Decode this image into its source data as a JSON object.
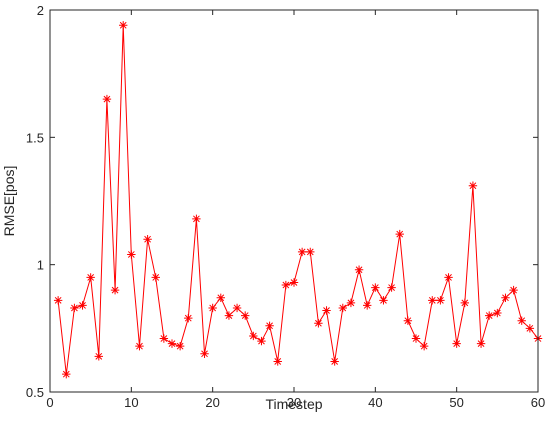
{
  "chart_data": {
    "type": "line",
    "title": "",
    "xlabel": "Timestep",
    "ylabel": "RMSE[pos]",
    "xlim": [
      0,
      60
    ],
    "ylim": [
      0.5,
      2
    ],
    "xticks": [
      0,
      10,
      20,
      30,
      40,
      50,
      60
    ],
    "yticks": [
      0.5,
      1,
      1.5,
      2
    ],
    "xtick_labels": [
      "0",
      "10",
      "20",
      "30",
      "40",
      "50",
      "60"
    ],
    "ytick_labels": [
      "0.5",
      "1",
      "1.5",
      "2"
    ],
    "grid": false,
    "legend": "none",
    "series": [
      {
        "color": "#ff0000",
        "marker": "asterisk",
        "x": [
          1,
          2,
          3,
          4,
          5,
          6,
          7,
          8,
          9,
          10,
          11,
          12,
          13,
          14,
          15,
          16,
          17,
          18,
          19,
          20,
          21,
          22,
          23,
          24,
          25,
          26,
          27,
          28,
          29,
          30,
          31,
          32,
          33,
          34,
          35,
          36,
          37,
          38,
          39,
          40,
          41,
          42,
          43,
          44,
          45,
          46,
          47,
          48,
          49,
          50,
          51,
          52,
          53,
          54,
          55,
          56,
          57,
          58,
          59,
          60
        ],
        "values": [
          0.86,
          0.57,
          0.83,
          0.84,
          0.95,
          0.64,
          1.65,
          0.9,
          1.94,
          1.04,
          0.68,
          1.1,
          0.95,
          0.71,
          0.69,
          0.68,
          0.79,
          1.18,
          0.65,
          0.83,
          0.87,
          0.8,
          0.83,
          0.8,
          0.72,
          0.7,
          0.76,
          0.62,
          0.92,
          0.93,
          1.05,
          1.05,
          0.77,
          0.82,
          0.62,
          0.83,
          0.85,
          0.98,
          0.84,
          0.91,
          0.86,
          0.91,
          1.12,
          0.78,
          0.71,
          0.68,
          0.86,
          0.86,
          0.95,
          0.69,
          0.85,
          1.31,
          0.69,
          0.8,
          0.81,
          0.87,
          0.9,
          0.78,
          0.75,
          0.71
        ]
      }
    ]
  }
}
